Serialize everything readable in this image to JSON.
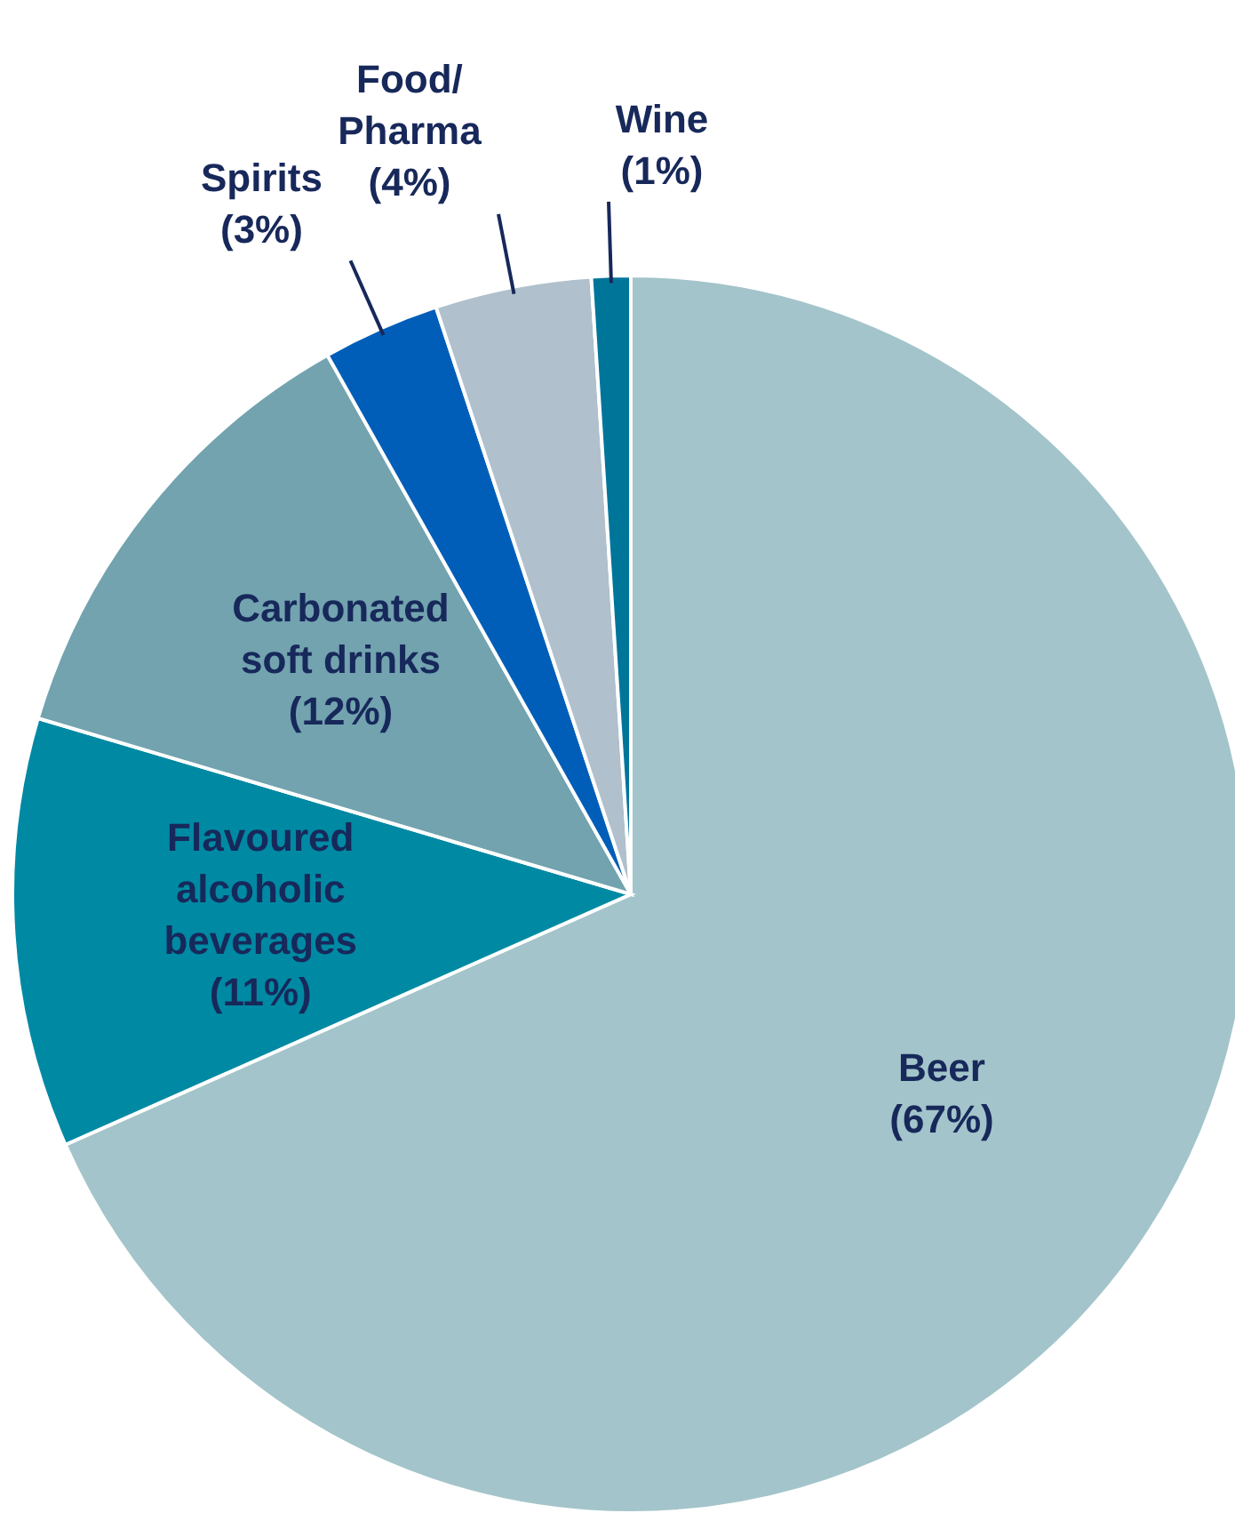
{
  "chart_data": {
    "type": "pie",
    "categories": [
      "Beer",
      "Flavoured alcoholic beverages",
      "Carbonated soft drinks",
      "Spirits",
      "Food/Pharma",
      "Wine"
    ],
    "values": [
      67,
      11,
      12,
      3,
      4,
      1
    ],
    "value_labels": [
      "(67%)",
      "(11%)",
      "(12%)",
      "(3%)",
      "(4%)",
      "(1%)"
    ],
    "colors": [
      "#a3c4ca",
      "#0089a3",
      "#72a3af",
      "#005eb8",
      "#b0c0cc",
      "#00759a"
    ]
  }
}
